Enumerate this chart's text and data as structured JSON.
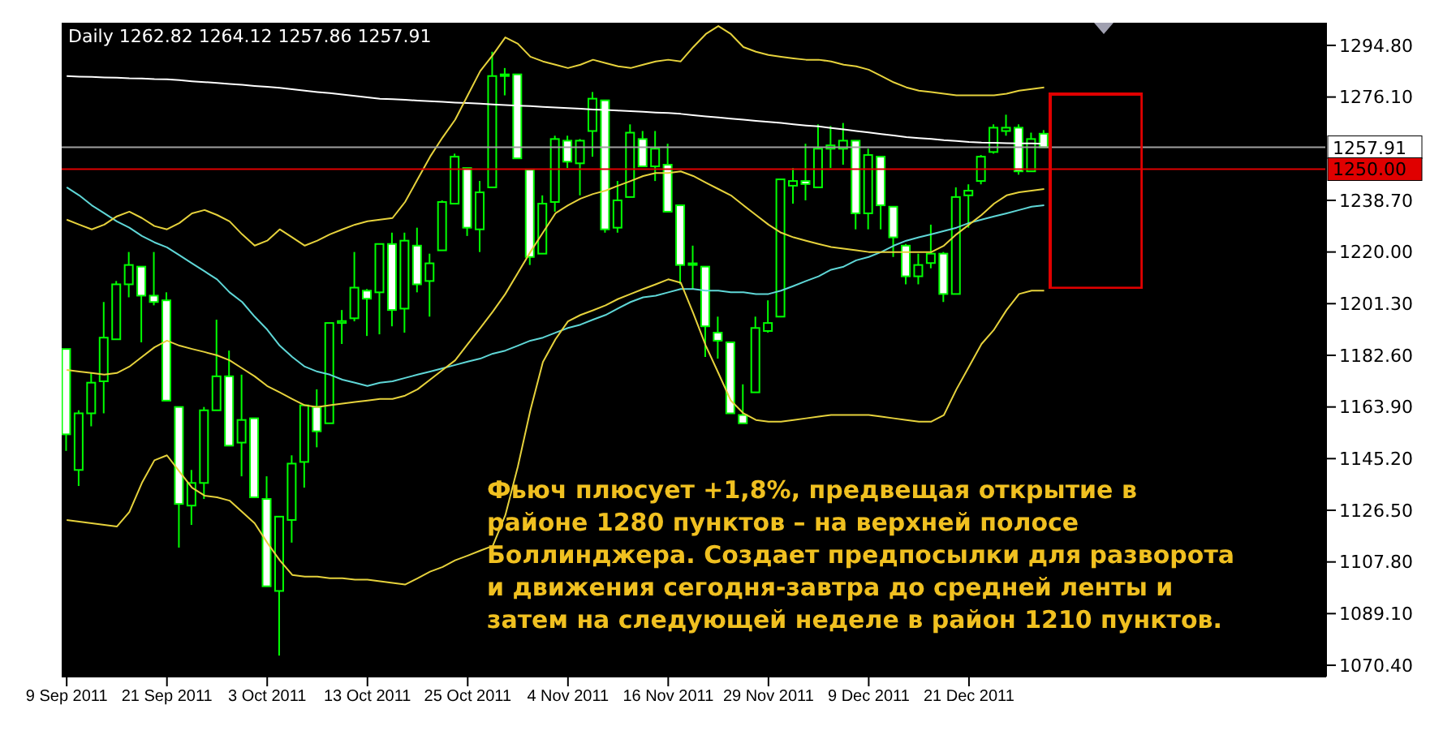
{
  "chart_data": {
    "type": "candlestick",
    "title": "Daily 1262.82 1264.12 1257.86 1257.91",
    "color": "#00ff00",
    "categories": [
      "9 Sep 2011",
      null,
      null,
      null,
      null,
      null,
      null,
      null,
      "21 Sep 2011",
      null,
      null,
      null,
      null,
      null,
      null,
      null,
      "3 Oct 2011",
      null,
      null,
      null,
      null,
      null,
      null,
      null,
      "13 Oct 2011",
      null,
      null,
      null,
      null,
      null,
      null,
      null,
      "25 Oct 2011",
      null,
      null,
      null,
      null,
      null,
      null,
      null,
      "4 Nov 2011",
      null,
      null,
      null,
      null,
      null,
      null,
      null,
      "16 Nov 2011",
      null,
      null,
      null,
      null,
      null,
      null,
      null,
      "29 Nov 2011",
      null,
      null,
      null,
      null,
      null,
      null,
      null,
      "9 Dec 2011",
      null,
      null,
      null,
      null,
      null,
      null,
      null,
      "21 Dec 2011",
      null,
      null,
      null,
      null,
      null,
      null
    ],
    "ohlc": [
      [
        1184.9,
        1184.9,
        1148.0,
        1154.0
      ],
      [
        1141.1,
        1162.7,
        1135.3,
        1161.6
      ],
      [
        1161.6,
        1176.2,
        1156.9,
        1172.7
      ],
      [
        1173.2,
        1201.9,
        1161.6,
        1189.0
      ],
      [
        1188.4,
        1209.5,
        1188.4,
        1208.3
      ],
      [
        1208.3,
        1220.0,
        1203.6,
        1215.3
      ],
      [
        1214.7,
        1214.7,
        1187.3,
        1204.2
      ],
      [
        1204.2,
        1220.0,
        1200.7,
        1201.9
      ],
      [
        1202.5,
        1205.4,
        1166.2,
        1166.2
      ],
      [
        1163.9,
        1163.9,
        1113.0,
        1128.8
      ],
      [
        1128.2,
        1141.1,
        1121.2,
        1136.4
      ],
      [
        1136.4,
        1163.9,
        1130.6,
        1162.7
      ],
      [
        1162.7,
        1195.5,
        1162.7,
        1175.0
      ],
      [
        1175.0,
        1184.3,
        1149.9,
        1149.9
      ],
      [
        1151.0,
        1175.6,
        1138.8,
        1159.2
      ],
      [
        1159.8,
        1159.8,
        1131.2,
        1131.2
      ],
      [
        1130.6,
        1138.8,
        1099.0,
        1099.0
      ],
      [
        1097.3,
        1124.2,
        1073.9,
        1124.2
      ],
      [
        1123.0,
        1146.4,
        1114.8,
        1143.4
      ],
      [
        1144.0,
        1164.5,
        1134.7,
        1164.5
      ],
      [
        1163.9,
        1170.3,
        1149.3,
        1155.1
      ],
      [
        1158.0,
        1194.3,
        1158.0,
        1194.3
      ],
      [
        1194.3,
        1199.0,
        1186.7,
        1195.0
      ],
      [
        1196.0,
        1220.0,
        1194.9,
        1207.1
      ],
      [
        1206.0,
        1206.6,
        1189.6,
        1203.1
      ],
      [
        1205.4,
        1222.9,
        1190.2,
        1222.9
      ],
      [
        1222.9,
        1227.0,
        1193.1,
        1199.0
      ],
      [
        1199.5,
        1227.0,
        1190.8,
        1224.1
      ],
      [
        1222.3,
        1228.8,
        1205.4,
        1208.3
      ],
      [
        1209.5,
        1219.4,
        1196.6,
        1215.9
      ],
      [
        1220.6,
        1238.7,
        1220.6,
        1238.1
      ],
      [
        1237.5,
        1255.6,
        1237.5,
        1254.5
      ],
      [
        1250.4,
        1250.4,
        1225.8,
        1228.8
      ],
      [
        1228.2,
        1245.7,
        1220.0,
        1241.6
      ],
      [
        1243.4,
        1292.5,
        1243.4,
        1283.7
      ],
      [
        1284.0,
        1286.6,
        1276.7,
        1284.3
      ],
      [
        1284.3,
        1284.3,
        1253.9,
        1253.9
      ],
      [
        1249.8,
        1249.8,
        1215.3,
        1218.2
      ],
      [
        1219.4,
        1240.5,
        1219.4,
        1237.5
      ],
      [
        1238.1,
        1262.1,
        1234.6,
        1260.9
      ],
      [
        1260.3,
        1262.1,
        1250.4,
        1252.7
      ],
      [
        1252.1,
        1260.9,
        1240.5,
        1260.3
      ],
      [
        1263.8,
        1277.9,
        1254.5,
        1275.5
      ],
      [
        1274.9,
        1274.9,
        1227.0,
        1228.2
      ],
      [
        1228.8,
        1245.7,
        1227.0,
        1238.7
      ],
      [
        1239.9,
        1266.2,
        1239.9,
        1263.2
      ],
      [
        1260.9,
        1263.8,
        1251.0,
        1251.0
      ],
      [
        1251.0,
        1263.8,
        1245.7,
        1257.4
      ],
      [
        1251.6,
        1259.2,
        1234.6,
        1234.6
      ],
      [
        1236.9,
        1236.9,
        1208.3,
        1215.3
      ],
      [
        1215.6,
        1222.3,
        1206.6,
        1215.9
      ],
      [
        1214.7,
        1214.7,
        1182.0,
        1193.1
      ],
      [
        1190.8,
        1196.6,
        1181.4,
        1187.9
      ],
      [
        1187.3,
        1187.3,
        1161.6,
        1161.6
      ],
      [
        1161.0,
        1172.1,
        1158.0,
        1158.0
      ],
      [
        1169.2,
        1196.6,
        1169.2,
        1192.5
      ],
      [
        1191.4,
        1202.5,
        1190.8,
        1194.3
      ],
      [
        1196.6,
        1246.3,
        1196.6,
        1246.3
      ],
      [
        1244.0,
        1250.4,
        1237.5,
        1245.7
      ],
      [
        1245.7,
        1259.2,
        1238.7,
        1244.6
      ],
      [
        1243.4,
        1266.2,
        1243.4,
        1257.4
      ],
      [
        1257.4,
        1265.6,
        1250.4,
        1258.6
      ],
      [
        1257.4,
        1266.7,
        1251.6,
        1260.3
      ],
      [
        1260.3,
        1260.3,
        1228.2,
        1234.0
      ],
      [
        1234.0,
        1257.4,
        1228.2,
        1255.1
      ],
      [
        1254.5,
        1254.5,
        1228.2,
        1236.9
      ],
      [
        1236.4,
        1236.4,
        1218.2,
        1225.3
      ],
      [
        1222.3,
        1222.9,
        1208.3,
        1211.2
      ],
      [
        1211.2,
        1219.4,
        1208.3,
        1215.3
      ],
      [
        1216.0,
        1229.9,
        1214.1,
        1219.4
      ],
      [
        1219.4,
        1220.0,
        1201.9,
        1204.8
      ],
      [
        1204.8,
        1243.4,
        1204.8,
        1239.9
      ],
      [
        1240.5,
        1244.5,
        1228.8,
        1242.2
      ],
      [
        1245.7,
        1255.1,
        1244.5,
        1254.5
      ],
      [
        1256.2,
        1266.2,
        1255.6,
        1265.0
      ],
      [
        1263.8,
        1269.7,
        1262.1,
        1265.0
      ],
      [
        1265.0,
        1266.2,
        1248.0,
        1249.2
      ],
      [
        1249.2,
        1263.2,
        1249.2,
        1260.9
      ],
      [
        1262.82,
        1264.12,
        1257.86,
        1257.91
      ]
    ],
    "series": [
      {
        "type": "line",
        "color": "#ffffff",
        "values": [
          1283.7,
          1283.5,
          1283.4,
          1283.2,
          1283.1,
          1282.9,
          1282.8,
          1282.6,
          1282.5,
          1282.2,
          1281.8,
          1281.5,
          1281.2,
          1280.8,
          1280.5,
          1280.1,
          1279.8,
          1279.4,
          1278.9,
          1278.4,
          1277.9,
          1277.5,
          1277.0,
          1276.5,
          1276.0,
          1275.5,
          1275.3,
          1275.1,
          1274.8,
          1274.6,
          1274.4,
          1274.1,
          1273.9,
          1273.7,
          1273.4,
          1273.2,
          1273.0,
          1272.8,
          1272.5,
          1272.3,
          1272.1,
          1271.9,
          1271.6,
          1271.4,
          1271.2,
          1271.0,
          1270.8,
          1270.5,
          1270.3,
          1270.0,
          1269.5,
          1269.1,
          1268.7,
          1268.3,
          1267.9,
          1267.5,
          1267.1,
          1266.7,
          1266.2,
          1265.8,
          1265.5,
          1264.9,
          1264.4,
          1263.8,
          1263.3,
          1262.7,
          1262.2,
          1261.6,
          1261.2,
          1260.9,
          1260.5,
          1260.2,
          1259.8,
          1259.6,
          1259.5,
          1259.4,
          1259.3,
          1259.3,
          1259.2
        ]
      },
      {
        "type": "line",
        "color": "#5fd7d7",
        "values": [
          1243.4,
          1240.5,
          1236.9,
          1234.0,
          1231.1,
          1228.8,
          1225.8,
          1223.5,
          1221.7,
          1218.8,
          1215.9,
          1213.0,
          1210.1,
          1205.4,
          1201.9,
          1196.6,
          1191.9,
          1186.1,
          1182.0,
          1178.5,
          1176.7,
          1175.6,
          1173.8,
          1172.7,
          1171.5,
          1172.7,
          1173.2,
          1174.4,
          1175.6,
          1176.7,
          1177.9,
          1179.1,
          1180.3,
          1181.4,
          1183.2,
          1184.3,
          1186.1,
          1187.9,
          1189.0,
          1190.8,
          1192.5,
          1193.7,
          1195.5,
          1197.2,
          1199.6,
          1201.9,
          1203.6,
          1204.2,
          1205.4,
          1206.6,
          1206.6,
          1206.0,
          1206.0,
          1205.4,
          1205.4,
          1204.8,
          1204.8,
          1206.0,
          1207.7,
          1209.5,
          1211.2,
          1213.6,
          1214.7,
          1217.0,
          1218.2,
          1220.0,
          1222.3,
          1224.1,
          1225.3,
          1226.4,
          1227.6,
          1228.8,
          1230.5,
          1231.7,
          1232.9,
          1234.0,
          1235.2,
          1236.4,
          1236.9
        ]
      },
      {
        "type": "line",
        "color": "#e6d23c",
        "values": [
          1231.7,
          1229.9,
          1228.2,
          1229.9,
          1232.9,
          1234.6,
          1232.3,
          1229.4,
          1228.2,
          1230.5,
          1234.0,
          1235.2,
          1233.4,
          1231.1,
          1226.4,
          1222.3,
          1224.1,
          1228.2,
          1225.3,
          1222.3,
          1224.1,
          1226.4,
          1228.2,
          1229.9,
          1231.1,
          1231.7,
          1232.3,
          1238.1,
          1246.3,
          1254.5,
          1261.5,
          1267.9,
          1276.7,
          1285.5,
          1291.3,
          1297.7,
          1295.4,
          1290.7,
          1289.0,
          1287.8,
          1286.6,
          1287.8,
          1289.6,
          1288.4,
          1287.2,
          1286.6,
          1287.8,
          1289.0,
          1289.6,
          1289.0,
          1294.2,
          1298.9,
          1301.8,
          1298.9,
          1294.2,
          1292.5,
          1291.3,
          1290.7,
          1290.1,
          1289.6,
          1289.6,
          1289.0,
          1287.8,
          1287.2,
          1286.0,
          1283.7,
          1281.4,
          1279.6,
          1278.4,
          1277.9,
          1277.3,
          1276.7,
          1276.7,
          1276.7,
          1276.7,
          1277.3,
          1278.4,
          1279.0,
          1279.6
        ]
      },
      {
        "type": "line",
        "color": "#e6d23c",
        "values": [
          1177.3,
          1176.7,
          1176.2,
          1175.6,
          1176.2,
          1178.5,
          1182.0,
          1185.5,
          1187.9,
          1186.1,
          1184.9,
          1183.8,
          1182.6,
          1180.8,
          1177.9,
          1175.0,
          1171.5,
          1169.2,
          1166.8,
          1164.5,
          1163.9,
          1164.5,
          1165.1,
          1165.7,
          1166.2,
          1166.8,
          1166.8,
          1168.0,
          1170.3,
          1173.8,
          1177.3,
          1180.8,
          1186.7,
          1192.5,
          1198.4,
          1204.8,
          1212.4,
          1220.0,
          1227.0,
          1234.0,
          1236.9,
          1239.3,
          1241.0,
          1242.2,
          1244.0,
          1245.7,
          1247.5,
          1248.6,
          1248.6,
          1249.2,
          1247.5,
          1245.1,
          1242.8,
          1240.5,
          1236.9,
          1233.4,
          1229.9,
          1227.0,
          1225.3,
          1224.1,
          1222.9,
          1221.8,
          1221.2,
          1220.6,
          1220.0,
          1220.0,
          1220.0,
          1220.0,
          1220.0,
          1220.0,
          1222.3,
          1226.4,
          1229.9,
          1233.4,
          1237.5,
          1240.5,
          1241.6,
          1242.2,
          1242.8
        ]
      },
      {
        "type": "line",
        "color": "#e6d23c",
        "values": [
          1123.0,
          1122.4,
          1121.8,
          1121.2,
          1120.6,
          1125.9,
          1136.4,
          1144.6,
          1146.4,
          1140.5,
          1134.7,
          1131.8,
          1131.2,
          1130.0,
          1125.9,
          1121.8,
          1114.8,
          1108.4,
          1103.1,
          1102.5,
          1102.5,
          1101.9,
          1101.9,
          1101.4,
          1101.4,
          1100.8,
          1100.2,
          1099.6,
          1101.9,
          1104.3,
          1106.0,
          1108.4,
          1110.1,
          1111.9,
          1113.6,
          1124.7,
          1142.3,
          1162.7,
          1180.2,
          1188.4,
          1194.9,
          1197.2,
          1198.9,
          1200.7,
          1203.0,
          1204.8,
          1206.6,
          1208.3,
          1210.1,
          1208.9,
          1197.8,
          1186.1,
          1176.2,
          1166.2,
          1161.6,
          1159.2,
          1158.6,
          1158.6,
          1159.2,
          1159.8,
          1160.4,
          1161.0,
          1161.0,
          1161.0,
          1161.0,
          1160.4,
          1159.8,
          1159.2,
          1158.6,
          1158.6,
          1161.0,
          1170.3,
          1178.5,
          1186.7,
          1191.9,
          1199.0,
          1204.8,
          1206.0,
          1206.0
        ]
      }
    ],
    "ylim": [
      1066.3,
      1303
    ],
    "yticks": [
      {
        "value": 1070.4,
        "label": "1070.40"
      },
      {
        "value": 1089.1,
        "label": "1089.10"
      },
      {
        "value": 1107.8,
        "label": "1107.80"
      },
      {
        "value": 1126.5,
        "label": "1126.50"
      },
      {
        "value": 1145.2,
        "label": "1145.20"
      },
      {
        "value": 1163.9,
        "label": "1163.90"
      },
      {
        "value": 1182.6,
        "label": "1182.60"
      },
      {
        "value": 1201.3,
        "label": "1201.30"
      },
      {
        "value": 1220.0,
        "label": "1220.00"
      },
      {
        "value": 1238.7,
        "label": "1238.70"
      },
      {
        "value": 1276.1,
        "label": "1276.10"
      },
      {
        "value": 1294.8,
        "label": "1294.80"
      }
    ],
    "ref_lines": [
      {
        "axis": "y",
        "value": 1257.91,
        "label": "1257.91",
        "color": "#a0a0a0"
      },
      {
        "axis": "y",
        "value": 1250.0,
        "label": "1250.00",
        "color": "#e00000"
      }
    ],
    "annotations": [
      "Фьюч плюсует +1,8%, предвещая открытие в\nрайоне 1280 пунктов – на верхней полосе\nБоллинджера. Создает предпосылки для разворота\nи движения сегодня-завтра до средней ленты и\nзатем на следующей неделе в район 1210 пунктов."
    ],
    "line_style": "solid"
  }
}
